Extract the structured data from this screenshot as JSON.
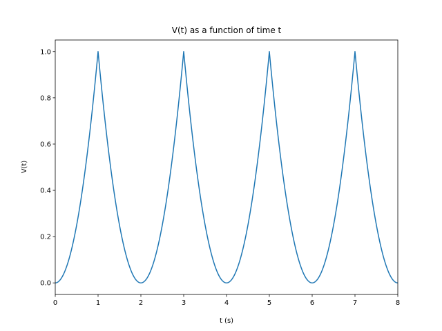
{
  "chart_data": {
    "type": "line",
    "title": "V(t) as a function of time t",
    "xlabel": "t (s)",
    "ylabel": "V(t)",
    "xlim": [
      0,
      8
    ],
    "ylim": [
      -0.05,
      1.05
    ],
    "grid": false,
    "legend": "none",
    "x_ticks": [
      "0",
      "1",
      "2",
      "3",
      "4",
      "5",
      "6",
      "7",
      "8"
    ],
    "y_ticks": [
      "0.0",
      "0.2",
      "0.4",
      "0.6",
      "0.8",
      "1.0"
    ],
    "series": [
      {
        "color": "#1f77b4",
        "x": [
          0,
          0.25,
          0.5,
          0.75,
          1,
          1.25,
          1.5,
          1.75,
          2,
          2.25,
          2.5,
          2.75,
          3,
          3.25,
          3.5,
          3.75,
          4,
          4.25,
          4.5,
          4.75,
          5,
          5.25,
          5.5,
          5.75,
          6,
          6.25,
          6.5,
          6.75,
          7,
          7.25,
          7.5,
          7.75,
          8
        ],
        "y": [
          0,
          0.06,
          0.25,
          0.56,
          1,
          0.56,
          0.25,
          0.06,
          0,
          0.06,
          0.25,
          0.56,
          1,
          0.56,
          0.25,
          0.06,
          0,
          0.06,
          0.25,
          0.56,
          1,
          0.56,
          0.25,
          0.06,
          0,
          0.06,
          0.25,
          0.56,
          1,
          0.56,
          0.25,
          0.06,
          0
        ]
      }
    ]
  }
}
